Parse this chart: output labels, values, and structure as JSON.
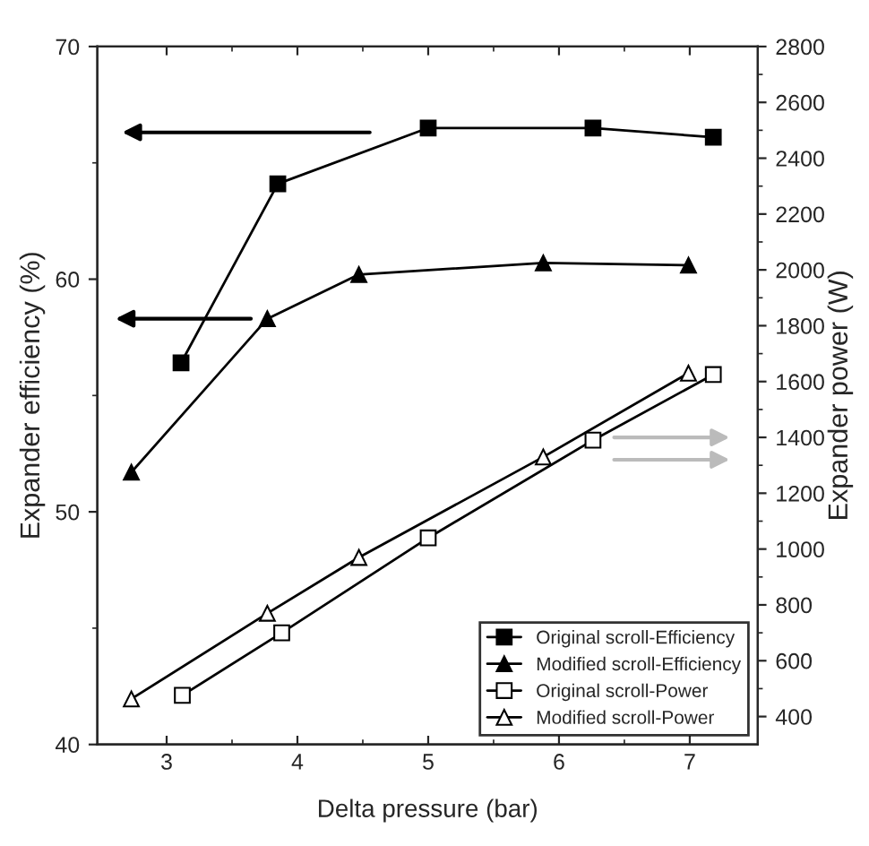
{
  "chart_data": {
    "type": "line",
    "xlabel": "Delta pressure (bar)",
    "ylabel": "Expander efficiency (%)",
    "y2label": "Expander power (W)",
    "xlim": [
      2.47,
      7.52
    ],
    "xticks": [
      3,
      4,
      5,
      6,
      7
    ],
    "ylim": [
      40,
      70
    ],
    "yticks": [
      40,
      50,
      60,
      70
    ],
    "y2lim": [
      300,
      2800
    ],
    "y2ticks": [
      400,
      600,
      800,
      1000,
      1200,
      1400,
      1600,
      1800,
      2000,
      2200,
      2400,
      2600,
      2800
    ],
    "grid": false,
    "legend": "bottom right",
    "line_style": "solid",
    "series": [
      {
        "name": "Original scroll-Efficiency",
        "color": "#000000",
        "marker": "square",
        "x": [
          3.11,
          3.85,
          5.0,
          6.26,
          7.18
        ],
        "values": [
          56.4,
          64.1,
          66.5,
          66.5,
          66.1
        ]
      },
      {
        "name": "Modified scroll-Efficiency",
        "color": "#000000",
        "marker": "triangle",
        "x": [
          2.73,
          3.77,
          4.47,
          5.88,
          6.99
        ],
        "values": [
          51.7,
          58.3,
          60.2,
          60.7,
          60.6
        ]
      },
      {
        "name": "Original scroll-Power",
        "color": "#000000",
        "marker": "square",
        "axis": "y2",
        "x": [
          3.12,
          3.88,
          5.0,
          6.26,
          7.18
        ],
        "values": [
          476,
          700,
          1040,
          1390,
          1625
        ]
      },
      {
        "name": "Modified scroll-Power",
        "color": "#000000",
        "marker": "triangle",
        "axis": "y2",
        "x": [
          2.73,
          3.77,
          4.47,
          5.88,
          6.99
        ],
        "values": [
          463,
          770,
          970,
          1330,
          1630
        ]
      }
    ]
  }
}
